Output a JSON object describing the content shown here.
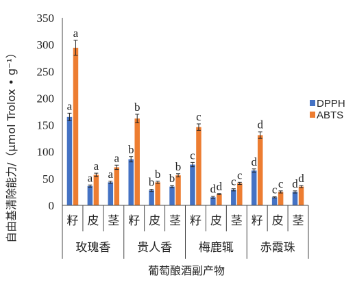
{
  "chart_data": {
    "type": "bar",
    "ylabel": "自由基清除能力/（µmol Trolox • g⁻¹）",
    "xlabel": "葡萄酿酒副产物",
    "ylim": [
      0,
      350
    ],
    "yticks": [
      0,
      50,
      100,
      150,
      200,
      250,
      300,
      350
    ],
    "groups": [
      {
        "name": "玫瑰香",
        "parts": [
          "籽",
          "皮",
          "茎"
        ]
      },
      {
        "name": "贵人香",
        "parts": [
          "籽",
          "皮",
          "茎"
        ]
      },
      {
        "name": "梅鹿辄",
        "parts": [
          "籽",
          "皮",
          "茎"
        ]
      },
      {
        "name": "赤霞珠",
        "parts": [
          "籽",
          "皮",
          "茎"
        ]
      }
    ],
    "series": [
      {
        "name": "DPPH",
        "color": "#4472C4",
        "values": [
          165,
          36,
          43,
          86,
          28,
          35,
          76,
          15,
          29,
          65,
          15,
          25
        ],
        "errors": [
          7,
          2,
          2,
          5,
          2,
          2,
          4,
          2,
          2,
          3,
          1,
          2
        ],
        "letters": [
          "a",
          "a",
          "a",
          "b",
          "b",
          "b",
          "c",
          "d",
          "c",
          "d",
          "c",
          "d"
        ]
      },
      {
        "name": "ABTS",
        "color": "#ED7D31",
        "values": [
          294,
          57,
          71,
          162,
          43,
          56,
          146,
          21,
          41,
          131,
          25,
          35
        ],
        "errors": [
          14,
          3,
          4,
          8,
          2,
          3,
          6,
          1,
          2,
          6,
          2,
          2
        ],
        "letters": [
          "a",
          "a",
          "a",
          "b",
          "b",
          "b",
          "c",
          "d",
          "c",
          "d",
          "c",
          "d"
        ]
      }
    ],
    "legend_position": "right"
  }
}
